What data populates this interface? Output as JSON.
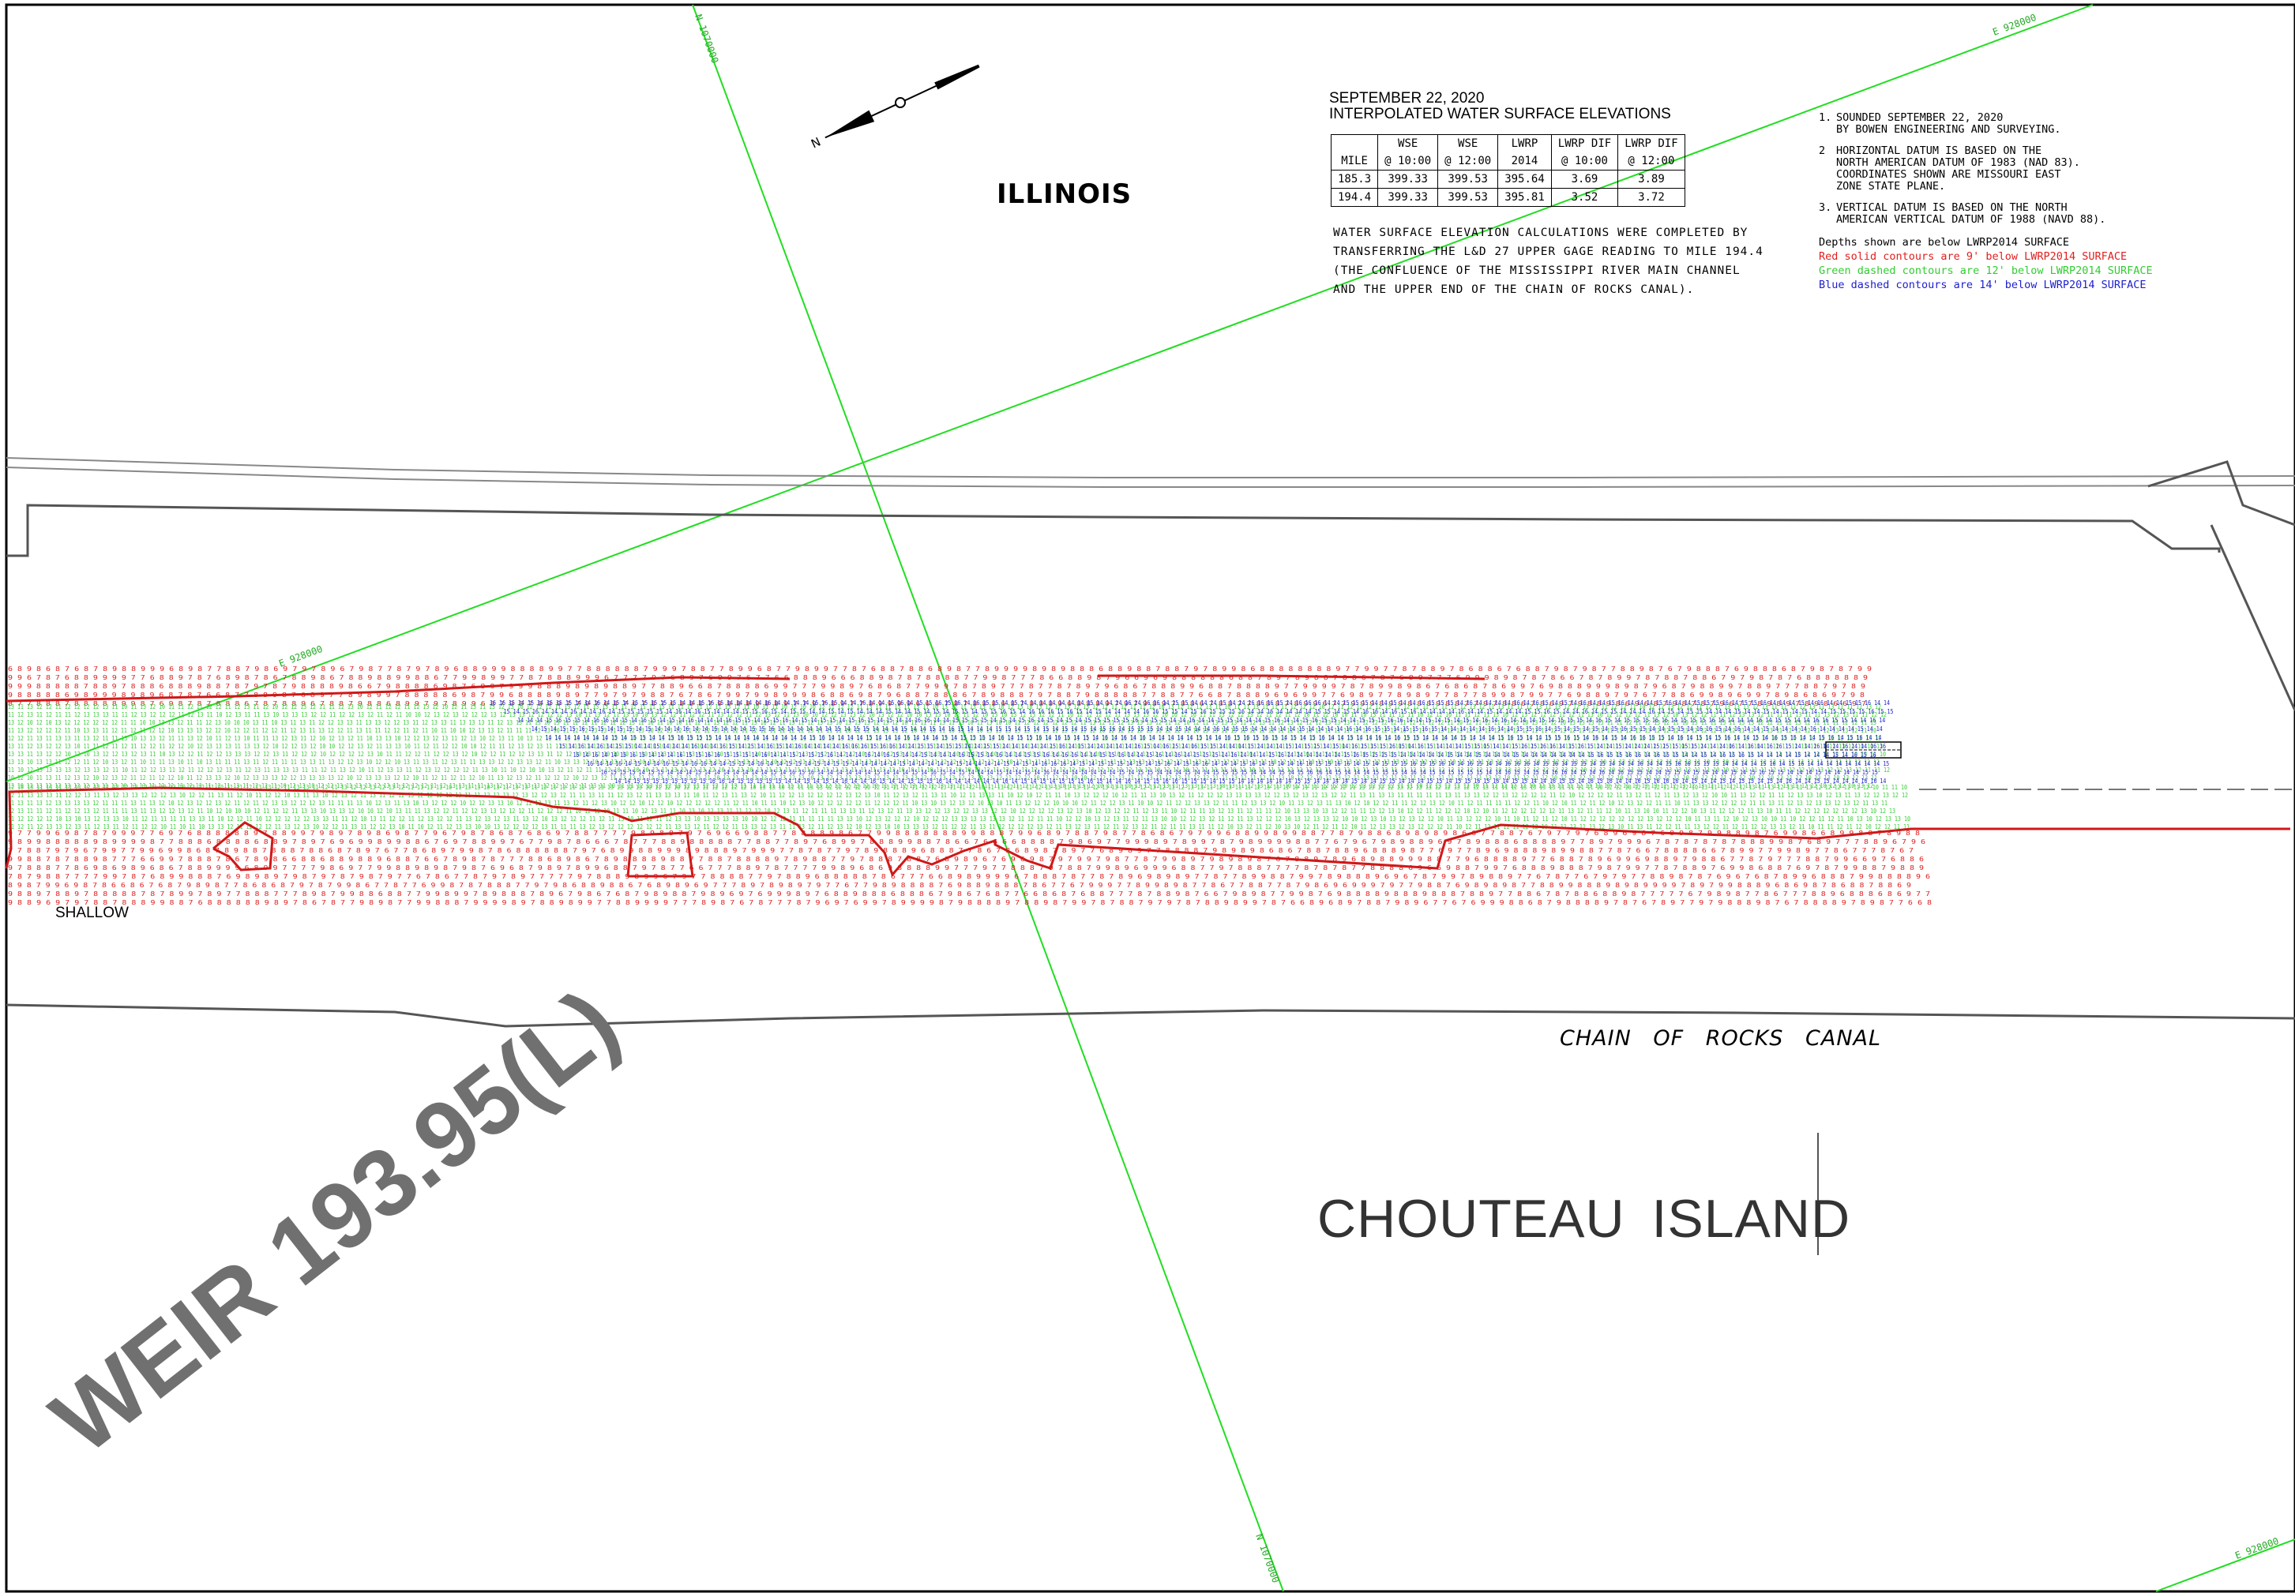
{
  "survey_header": {
    "date": "SEPTEMBER 22, 2020",
    "subtitle": "INTERPOLATED WATER SURFACE ELEVATIONS"
  },
  "wse_table": {
    "columns": [
      [
        "",
        "MILE"
      ],
      [
        "WSE",
        "@ 10:00"
      ],
      [
        "WSE",
        "@ 12:00"
      ],
      [
        "LWRP",
        "2014"
      ],
      [
        "LWRP DIF",
        "@ 10:00"
      ],
      [
        "LWRP DIF",
        "@ 12:00"
      ]
    ],
    "rows": [
      [
        "185.3",
        "399.33",
        "399.53",
        "395.64",
        "3.69",
        "3.89"
      ],
      [
        "194.4",
        "399.33",
        "399.53",
        "395.81",
        "3.52",
        "3.72"
      ]
    ]
  },
  "calc_note": [
    "WATER SURFACE ELEVATION CALCULATIONS WERE COMPLETED BY",
    "TRANSFERRING THE L&D 27 UPPER GAGE READING TO MILE 194.4",
    "(THE CONFLUENCE OF THE MISSISSIPPI RIVER MAIN CHANNEL",
    "AND THE UPPER END OF THE CHAIN OF ROCKS CANAL)."
  ],
  "notes": [
    {
      "num": "1.",
      "text": [
        "SOUNDED SEPTEMBER 22, 2020",
        "BY BOWEN ENGINEERING AND SURVEYING."
      ]
    },
    {
      "num": "2",
      "text": [
        "HORIZONTAL DATUM IS BASED ON THE",
        "NORTH AMERICAN DATUM OF 1983 (NAD 83).",
        "COORDINATES SHOWN ARE MISSOURI EAST",
        "ZONE STATE PLANE."
      ]
    },
    {
      "num": "3.",
      "text": [
        "VERTICAL DATUM IS BASED ON THE NORTH",
        "AMERICAN VERTICAL DATUM OF 1988 (NAVD 88)."
      ]
    }
  ],
  "legend": {
    "intro": "Depths shown are below LWRP2014 SURFACE",
    "red": "Red solid contours are 9' below LWRP2014 SURFACE",
    "green": "Green dashed contours are 12' below LWRP2014 SURFACE",
    "blue": "Blue dashed contours are 14' below LWRP2014 SURFACE"
  },
  "labels": {
    "state": "ILLINOIS",
    "shallow": "SHALLOW",
    "canal": "CHAIN OF ROCKS CANAL",
    "island": "CHOUTEAU ISLAND",
    "weir": "WEIR 193.95(L)",
    "north_arrow": "N"
  },
  "grid_labels": {
    "northing_top": "N 1070000",
    "northing_bottom": "N 1070000",
    "easting_mid": "E 928000",
    "easting_top": "E 928000",
    "easting_bottom": "E 928000"
  },
  "colors": {
    "red": "#e02020",
    "green": "#33cc33",
    "blue": "#2020d0",
    "grid": "#22dd22",
    "bank": "#555555"
  },
  "sounding_values": {
    "red": [
      "8",
      "9",
      "7",
      "8",
      "6",
      "9",
      "8",
      "7"
    ],
    "green": [
      "11",
      "12",
      "13",
      "12",
      "10",
      "11",
      "13",
      "12"
    ],
    "blue": [
      "14",
      "15",
      "14",
      "16",
      "14",
      "15"
    ]
  }
}
